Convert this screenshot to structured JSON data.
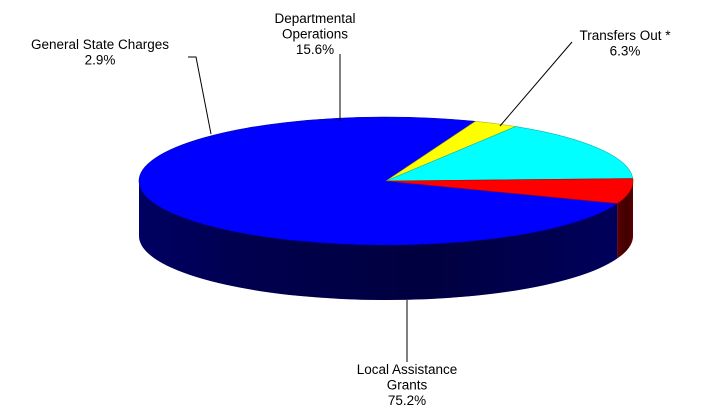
{
  "chart_data": {
    "type": "pie",
    "style": "3d",
    "categories": [
      "Local Assistance Grants",
      "General State Charges",
      "Departmental Operations",
      "Transfers Out *"
    ],
    "values": [
      75.2,
      2.9,
      15.6,
      6.3
    ],
    "units": "%",
    "colors": [
      "#0000ff",
      "#ffff00",
      "#00ffff",
      "#ff0000"
    ],
    "labels": [
      {
        "lines": [
          "Local Assistance",
          "Grants"
        ],
        "value": "75.2%"
      },
      {
        "lines": [
          "General State Charges"
        ],
        "value": "2.9%"
      },
      {
        "lines": [
          "Departmental",
          "Operations"
        ],
        "value": "15.6%"
      },
      {
        "lines": [
          "Transfers Out *"
        ],
        "value": "6.3%"
      }
    ],
    "legend": "none"
  }
}
